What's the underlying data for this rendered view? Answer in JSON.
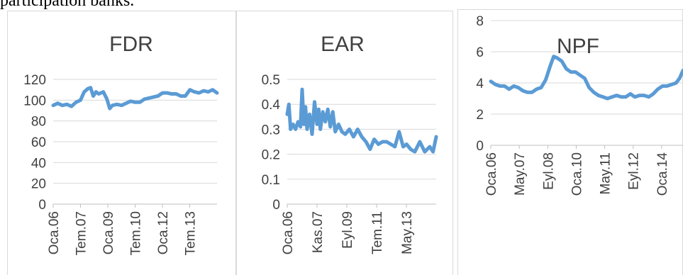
{
  "caption": "participation banks.",
  "chart_data": [
    {
      "type": "line",
      "title": "FDR",
      "ylim": [
        0,
        120
      ],
      "yticks": [
        0,
        20,
        40,
        60,
        80,
        100,
        120
      ],
      "xticks": [
        "Oca.06",
        "Tem.07",
        "Oca.09",
        "Tem.10",
        "Oca.12",
        "Tem.13"
      ],
      "xlim": [
        2006.0,
        2014.99
      ],
      "grid": true,
      "color": "#5B9BD5",
      "x": [
        2006.0,
        2006.25,
        2006.5,
        2006.75,
        2007.0,
        2007.25,
        2007.5,
        2007.7,
        2007.9,
        2008.05,
        2008.2,
        2008.35,
        2008.5,
        2008.75,
        2008.95,
        2009.1,
        2009.25,
        2009.5,
        2009.75,
        2010.0,
        2010.25,
        2010.5,
        2010.75,
        2011.0,
        2011.25,
        2011.5,
        2011.75,
        2012.0,
        2012.25,
        2012.5,
        2012.75,
        2013.0,
        2013.25,
        2013.5,
        2013.75,
        2014.0,
        2014.25,
        2014.5,
        2014.75,
        2014.99
      ],
      "y": [
        95,
        97,
        95,
        96,
        94,
        98,
        100,
        108,
        111,
        112,
        104,
        108,
        106,
        108,
        101,
        92,
        95,
        96,
        95,
        97,
        99,
        98,
        98,
        101,
        102,
        103,
        104,
        107,
        107,
        106,
        106,
        104,
        104,
        110,
        108,
        107,
        109,
        108,
        110,
        107
      ]
    },
    {
      "type": "line",
      "title": "EAR",
      "ylim": [
        0,
        0.5
      ],
      "yticks": [
        "0",
        "0.1",
        "0.2",
        "0.3",
        "0.4",
        "0.5"
      ],
      "xticks": [
        "Oca.06",
        "Kas.07",
        "Eyl.09",
        "Tem.11",
        "May.13"
      ],
      "xlim": [
        2006.0,
        2014.99
      ],
      "grid": true,
      "color": "#5B9BD5",
      "x": [
        2006.0,
        2006.1,
        2006.2,
        2006.35,
        2006.5,
        2006.65,
        2006.8,
        2006.9,
        2007.0,
        2007.1,
        2007.2,
        2007.35,
        2007.5,
        2007.65,
        2007.8,
        2007.9,
        2008.0,
        2008.15,
        2008.3,
        2008.45,
        2008.6,
        2008.75,
        2008.9,
        2009.1,
        2009.3,
        2009.5,
        2009.75,
        2010.0,
        2010.25,
        2010.5,
        2010.75,
        2011.0,
        2011.25,
        2011.5,
        2011.75,
        2012.0,
        2012.25,
        2012.5,
        2012.75,
        2013.0,
        2013.2,
        2013.45,
        2013.7,
        2014.0,
        2014.3,
        2014.6,
        2014.8,
        2014.99
      ],
      "y": [
        0.36,
        0.4,
        0.3,
        0.32,
        0.3,
        0.33,
        0.31,
        0.46,
        0.32,
        0.39,
        0.3,
        0.36,
        0.28,
        0.41,
        0.32,
        0.38,
        0.3,
        0.37,
        0.33,
        0.38,
        0.31,
        0.37,
        0.29,
        0.32,
        0.29,
        0.28,
        0.3,
        0.27,
        0.3,
        0.27,
        0.25,
        0.22,
        0.26,
        0.24,
        0.25,
        0.25,
        0.24,
        0.23,
        0.29,
        0.23,
        0.24,
        0.22,
        0.21,
        0.25,
        0.21,
        0.23,
        0.21,
        0.27
      ]
    },
    {
      "type": "line",
      "title": "NPF",
      "ylim": [
        0,
        8
      ],
      "yticks": [
        0,
        2,
        4,
        6,
        8
      ],
      "xticks": [
        "Oca.06",
        "May.07",
        "Eyl.08",
        "Oca.10",
        "May.11",
        "Eyl.12",
        "Oca.14"
      ],
      "xlim": [
        2006.0,
        2014.4
      ],
      "grid": true,
      "color": "#5B9BD5",
      "x": [
        2006.0,
        2006.2,
        2006.4,
        2006.6,
        2006.8,
        2007.0,
        2007.2,
        2007.4,
        2007.6,
        2007.8,
        2008.0,
        2008.2,
        2008.4,
        2008.6,
        2008.75,
        2008.9,
        2009.1,
        2009.3,
        2009.5,
        2009.7,
        2009.9,
        2010.1,
        2010.3,
        2010.5,
        2010.7,
        2010.9,
        2011.1,
        2011.3,
        2011.5,
        2011.7,
        2011.9,
        2012.1,
        2012.3,
        2012.5,
        2012.7,
        2012.9,
        2013.1,
        2013.3,
        2013.5,
        2013.7,
        2013.9,
        2014.1,
        2014.25,
        2014.4
      ],
      "y": [
        4.1,
        3.9,
        3.8,
        3.8,
        3.6,
        3.8,
        3.7,
        3.5,
        3.4,
        3.4,
        3.6,
        3.7,
        4.2,
        5.1,
        5.7,
        5.6,
        5.4,
        4.9,
        4.7,
        4.7,
        4.5,
        4.3,
        3.7,
        3.4,
        3.2,
        3.1,
        3.0,
        3.1,
        3.2,
        3.1,
        3.1,
        3.3,
        3.1,
        3.2,
        3.2,
        3.1,
        3.3,
        3.6,
        3.8,
        3.8,
        3.9,
        4.0,
        4.3,
        4.8
      ]
    }
  ]
}
